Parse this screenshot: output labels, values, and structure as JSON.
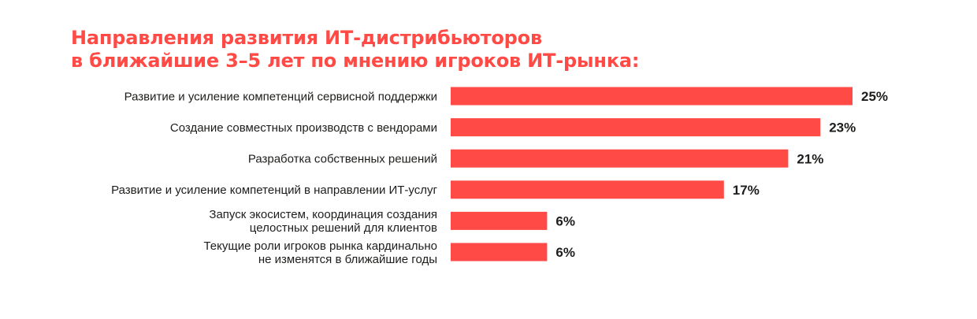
{
  "colors": {
    "accent": "#ff4a45",
    "bar": "#ff4a45",
    "text": "#1d1d1b"
  },
  "chart_data": {
    "type": "bar",
    "orientation": "horizontal",
    "title": [
      "Направления развития ИТ-дистрибьюторов",
      "в ближайшие 3–5 лет по мнению игроков ИТ-рынка:"
    ],
    "categories": [
      [
        "Развитие и усиление компетенций сервисной поддержки"
      ],
      [
        "Создание совместных производств с вендорами"
      ],
      [
        "Разработка собственных решений"
      ],
      [
        "Развитие и усиление компетенций в направлении ИТ-услуг"
      ],
      [
        "Запуск экосистем, координация создания",
        "целостных решений для клиентов"
      ],
      [
        "Текущие роли игроков рынка кардинально",
        "не изменятся в ближайшие годы"
      ]
    ],
    "values": [
      25,
      23,
      21,
      17,
      6,
      6
    ],
    "value_labels": [
      "25%",
      "23%",
      "21%",
      "17%",
      "6%",
      "6%"
    ],
    "unit": "%",
    "grid": false,
    "legend": "none"
  }
}
